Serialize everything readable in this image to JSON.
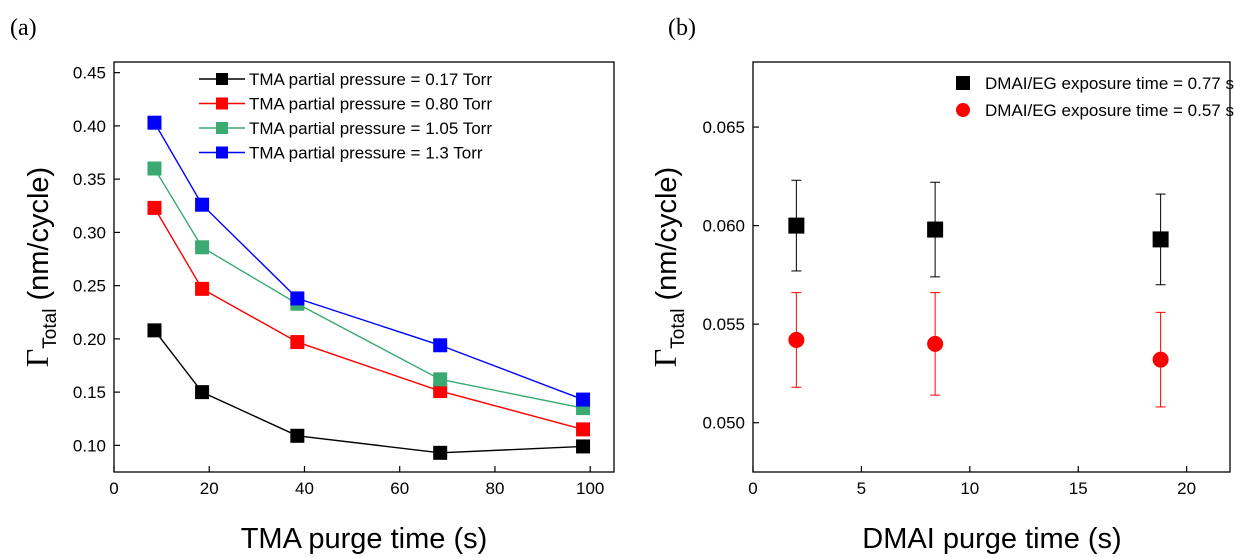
{
  "chart_data": [
    {
      "type": "line",
      "panel_label": "(a)",
      "xlabel": "TMA purge time (s)",
      "ylabel_symbol": "Γ",
      "ylabel_subscript": "Total",
      "ylabel_unit": " (nm/cycle)",
      "xlim": [
        0,
        105
      ],
      "ylim": [
        0.075,
        0.46
      ],
      "xticks": [
        0,
        20,
        40,
        60,
        80,
        100
      ],
      "yticks": [
        0.1,
        0.15,
        0.2,
        0.25,
        0.3,
        0.35,
        0.4,
        0.45
      ],
      "ytick_decimals": 2,
      "legend_position": "top-right",
      "x": [
        8.5,
        18.5,
        38.5,
        68.5,
        98.5
      ],
      "series": [
        {
          "name": "TMA partial pressure = 0.17 Torr",
          "color": "#000000",
          "values": [
            0.208,
            0.15,
            0.109,
            0.093,
            0.099
          ]
        },
        {
          "name": "TMA partial pressure = 0.80 Torr",
          "color": "#ff0000",
          "values": [
            0.323,
            0.247,
            0.197,
            0.151,
            0.115
          ]
        },
        {
          "name": "TMA partial pressure = 1.05 Torr",
          "color": "#3aaa72",
          "values": [
            0.36,
            0.286,
            0.233,
            0.162,
            0.135
          ]
        },
        {
          "name": "TMA partial pressure = 1.3 Torr",
          "color": "#0000ff",
          "values": [
            0.403,
            0.326,
            0.238,
            0.194,
            0.143
          ]
        }
      ]
    },
    {
      "type": "scatter",
      "panel_label": "(b)",
      "xlabel": "DMAI purge time (s)",
      "ylabel_symbol": "Γ",
      "ylabel_subscript": "Total",
      "ylabel_unit": " (nm/cycle)",
      "xlim": [
        0,
        22
      ],
      "ylim": [
        0.0475,
        0.0683
      ],
      "xticks": [
        0,
        5,
        10,
        15,
        20
      ],
      "yticks": [
        0.05,
        0.055,
        0.06,
        0.065
      ],
      "ytick_decimals": 3,
      "legend_position": "top-right",
      "x": [
        2,
        8.4,
        18.8
      ],
      "series": [
        {
          "name": "DMAI/EG exposure time = 0.77 s",
          "color": "#000000",
          "marker": "square",
          "values": [
            0.06,
            0.0598,
            0.0593
          ],
          "errors": [
            0.0023,
            0.0024,
            0.0023
          ]
        },
        {
          "name": "DMAI/EG exposure time = 0.57 s",
          "color": "#ff0000",
          "marker": "circle",
          "values": [
            0.0542,
            0.054,
            0.0532
          ],
          "errors": [
            0.0024,
            0.0026,
            0.0024
          ]
        }
      ]
    }
  ]
}
